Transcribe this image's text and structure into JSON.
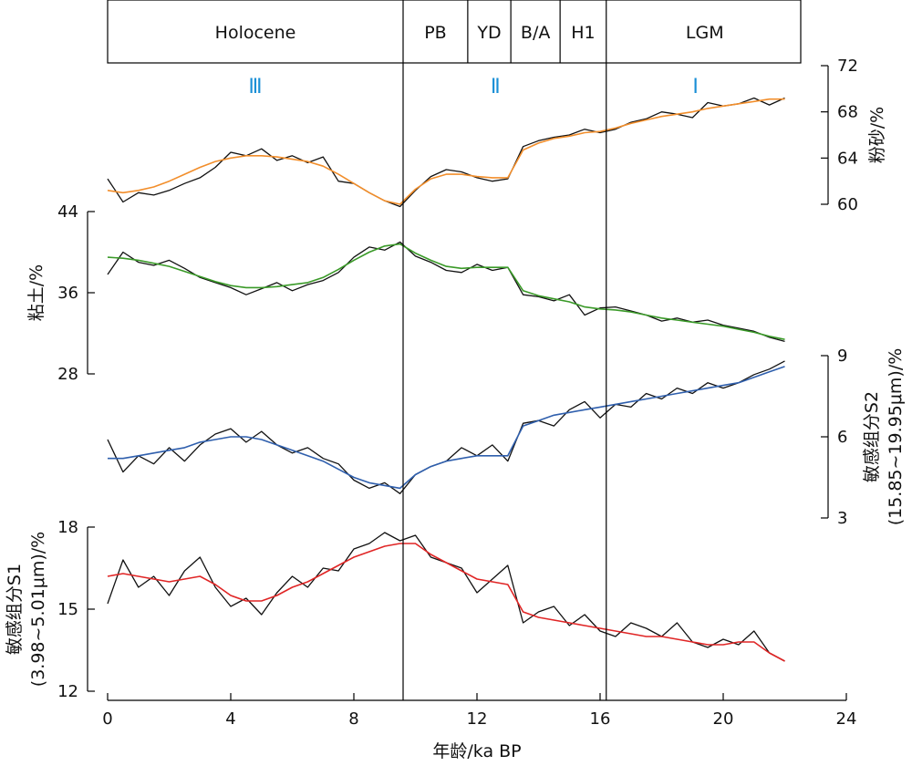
{
  "chart_data": {
    "type": "line",
    "x_axis": {
      "label": "年龄/ka BP",
      "min": 0,
      "max": 24,
      "ticks": [
        0,
        4,
        8,
        12,
        16,
        20,
        24
      ]
    },
    "periods": [
      {
        "name": "Holocene",
        "start": 0,
        "end": 9.6
      },
      {
        "name": "PB",
        "start": 9.6,
        "end": 11.7
      },
      {
        "name": "YD",
        "start": 11.7,
        "end": 13.1
      },
      {
        "name": "B/A",
        "start": 13.1,
        "end": 14.7
      },
      {
        "name": "H1",
        "start": 14.7,
        "end": 16.2
      },
      {
        "name": "LGM",
        "start": 16.2,
        "end": 22.6
      }
    ],
    "zones": [
      {
        "name": "Ⅲ",
        "center": 4.8
      },
      {
        "name": "Ⅱ",
        "center": 12.6
      },
      {
        "name": "Ⅰ",
        "center": 19.1
      }
    ],
    "boundaries": [
      9.6,
      16.2
    ],
    "panels": [
      {
        "id": "silt",
        "ylabel": "粉砂/%",
        "yaxis_side": "right",
        "ylim": [
          60,
          72
        ],
        "yticks": [
          60,
          64,
          68,
          72
        ],
        "smooth_color": "#f28e2b",
        "x": [
          0,
          0.5,
          1,
          1.5,
          2,
          2.5,
          3,
          3.5,
          4,
          4.5,
          5,
          5.5,
          6,
          6.5,
          7,
          7.5,
          8,
          8.5,
          9,
          9.5,
          10,
          10.5,
          11,
          11.5,
          12,
          12.5,
          13,
          13.5,
          14,
          14.5,
          15,
          15.5,
          16,
          16.5,
          17,
          17.5,
          18,
          18.5,
          19,
          19.5,
          20,
          20.5,
          21,
          21.5,
          22
        ],
        "raw": [
          62.2,
          60.2,
          61,
          60.8,
          61.2,
          61.8,
          62.3,
          63.2,
          64.5,
          64.2,
          64.8,
          63.8,
          64.2,
          63.6,
          64.1,
          62,
          61.8,
          61,
          60.3,
          59.8,
          61.2,
          62.4,
          63,
          62.8,
          62.3,
          62,
          62.2,
          65,
          65.5,
          65.8,
          66,
          66.5,
          66.2,
          66.5,
          67.1,
          67.4,
          68,
          67.8,
          67.5,
          68.8,
          68.5,
          68.7,
          69.2,
          68.6,
          69.2
        ],
        "smooth": [
          61.2,
          61,
          61.2,
          61.5,
          62,
          62.6,
          63.2,
          63.7,
          64,
          64.2,
          64.2,
          64.1,
          63.9,
          63.7,
          63.3,
          62.6,
          61.8,
          61,
          60.3,
          60,
          61.3,
          62.2,
          62.6,
          62.6,
          62.4,
          62.3,
          62.3,
          64.7,
          65.3,
          65.7,
          65.9,
          66.2,
          66.3,
          66.6,
          67,
          67.3,
          67.6,
          67.8,
          68,
          68.3,
          68.5,
          68.7,
          68.9,
          69.1,
          69.1
        ]
      },
      {
        "id": "clay",
        "ylabel": "粘土/%",
        "yaxis_side": "left",
        "ylim": [
          28,
          44
        ],
        "yticks": [
          28,
          36,
          44
        ],
        "smooth_color": "#3a9a28",
        "x": [
          0,
          0.5,
          1,
          1.5,
          2,
          2.5,
          3,
          3.5,
          4,
          4.5,
          5,
          5.5,
          6,
          6.5,
          7,
          7.5,
          8,
          8.5,
          9,
          9.5,
          10,
          10.5,
          11,
          11.5,
          12,
          12.5,
          13,
          13.5,
          14,
          14.5,
          15,
          15.5,
          16,
          16.5,
          17,
          17.5,
          18,
          18.5,
          19,
          19.5,
          20,
          20.5,
          21,
          21.5,
          22
        ],
        "raw": [
          37.8,
          40,
          39,
          38.7,
          39.2,
          38.4,
          37.5,
          37,
          36.5,
          35.8,
          36.4,
          37,
          36.2,
          36.8,
          37.2,
          38,
          39.5,
          40.5,
          40.2,
          41,
          39.6,
          39,
          38.2,
          38,
          38.8,
          38.2,
          38.5,
          35.8,
          35.6,
          35.2,
          35.8,
          33.8,
          34.5,
          34.6,
          34.2,
          33.8,
          33.2,
          33.5,
          33.1,
          33.3,
          32.8,
          32.5,
          32.2,
          31.6,
          31.2
        ],
        "smooth": [
          39.5,
          39.4,
          39.2,
          38.9,
          38.6,
          38.1,
          37.6,
          37.1,
          36.7,
          36.5,
          36.5,
          36.6,
          36.8,
          37,
          37.5,
          38.3,
          39.2,
          40,
          40.6,
          40.8,
          39.9,
          39.2,
          38.6,
          38.4,
          38.5,
          38.5,
          38.5,
          36.2,
          35.7,
          35.4,
          35.1,
          34.6,
          34.4,
          34.3,
          34.1,
          33.8,
          33.5,
          33.3,
          33.1,
          32.9,
          32.7,
          32.4,
          32.1,
          31.7,
          31.4
        ]
      },
      {
        "id": "s2",
        "ylabel": "敏感组分S2",
        "ylabel2": "(15.85~19.95μm)/%",
        "yaxis_side": "right",
        "ylim": [
          3,
          9
        ],
        "yticks": [
          3,
          6,
          9
        ],
        "smooth_color": "#2f5fad",
        "x": [
          0,
          0.5,
          1,
          1.5,
          2,
          2.5,
          3,
          3.5,
          4,
          4.5,
          5,
          5.5,
          6,
          6.5,
          7,
          7.5,
          8,
          8.5,
          9,
          9.5,
          10,
          10.5,
          11,
          11.5,
          12,
          12.5,
          13,
          13.5,
          14,
          14.5,
          15,
          15.5,
          16,
          16.5,
          17,
          17.5,
          18,
          18.5,
          19,
          19.5,
          20,
          20.5,
          21,
          21.5,
          22
        ],
        "raw": [
          5.9,
          4.7,
          5.3,
          5.0,
          5.6,
          5.1,
          5.7,
          6.1,
          6.3,
          5.8,
          6.2,
          5.7,
          5.4,
          5.6,
          5.2,
          5.0,
          4.4,
          4.1,
          4.3,
          3.9,
          4.6,
          4.9,
          5.1,
          5.6,
          5.3,
          5.7,
          5.1,
          6.5,
          6.6,
          6.4,
          7.0,
          7.3,
          6.7,
          7.2,
          7.1,
          7.6,
          7.4,
          7.8,
          7.6,
          8.0,
          7.8,
          8.0,
          8.3,
          8.5,
          8.8
        ],
        "smooth": [
          5.2,
          5.2,
          5.3,
          5.4,
          5.5,
          5.6,
          5.8,
          5.9,
          6.0,
          6.0,
          5.9,
          5.7,
          5.5,
          5.3,
          5.1,
          4.8,
          4.5,
          4.3,
          4.2,
          4.1,
          4.6,
          4.9,
          5.1,
          5.2,
          5.3,
          5.3,
          5.3,
          6.4,
          6.6,
          6.8,
          6.9,
          7.0,
          7.1,
          7.2,
          7.3,
          7.4,
          7.5,
          7.6,
          7.7,
          7.8,
          7.9,
          8.0,
          8.2,
          8.4,
          8.6
        ]
      },
      {
        "id": "s1",
        "ylabel": "敏感组分S1",
        "ylabel2": "(3.98~5.01μm)/%",
        "yaxis_side": "left",
        "ylim": [
          12,
          18
        ],
        "yticks": [
          12,
          15,
          18
        ],
        "smooth_color": "#e02525",
        "x": [
          0,
          0.5,
          1,
          1.5,
          2,
          2.5,
          3,
          3.5,
          4,
          4.5,
          5,
          5.5,
          6,
          6.5,
          7,
          7.5,
          8,
          8.5,
          9,
          9.5,
          10,
          10.5,
          11,
          11.5,
          12,
          12.5,
          13,
          13.5,
          14,
          14.5,
          15,
          15.5,
          16,
          16.5,
          17,
          17.5,
          18,
          18.5,
          19,
          19.5,
          20,
          20.5,
          21,
          21.5,
          22
        ],
        "raw": [
          15.2,
          16.8,
          15.8,
          16.2,
          15.5,
          16.4,
          16.9,
          15.8,
          15.1,
          15.4,
          14.8,
          15.6,
          16.2,
          15.8,
          16.5,
          16.4,
          17.2,
          17.4,
          17.8,
          17.5,
          17.7,
          16.9,
          16.7,
          16.5,
          15.6,
          16.1,
          16.6,
          14.5,
          14.9,
          15.1,
          14.4,
          14.8,
          14.2,
          14.0,
          14.5,
          14.3,
          14.0,
          14.5,
          13.8,
          13.6,
          13.9,
          13.7,
          14.2,
          13.4,
          13.1
        ],
        "smooth": [
          16.2,
          16.3,
          16.2,
          16.1,
          16.0,
          16.1,
          16.2,
          15.9,
          15.5,
          15.3,
          15.3,
          15.5,
          15.8,
          16.0,
          16.3,
          16.6,
          16.9,
          17.1,
          17.3,
          17.4,
          17.4,
          17.0,
          16.7,
          16.4,
          16.1,
          16.0,
          15.9,
          14.9,
          14.7,
          14.6,
          14.5,
          14.4,
          14.3,
          14.2,
          14.1,
          14.0,
          14.0,
          13.9,
          13.8,
          13.7,
          13.7,
          13.8,
          13.8,
          13.4,
          13.1
        ]
      }
    ]
  }
}
